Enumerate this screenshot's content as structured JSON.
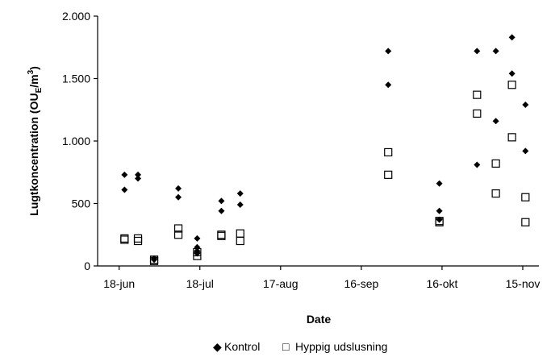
{
  "chart_data": {
    "type": "scatter",
    "title": "",
    "xlabel": "Date",
    "ylabel_main": "Lugtkoncentration (OU",
    "ylabel_sub": "E",
    "ylabel_end": "/m",
    "ylabel_sup": "3",
    "ylabel_close": ")",
    "xlim": [
      "2006-06-10",
      "2006-11-21"
    ],
    "ylim": [
      0,
      2000
    ],
    "grid": false,
    "legend_position": "bottom",
    "x_ticks": [
      {
        "date": "2006-06-18",
        "label": "18-jun"
      },
      {
        "date": "2006-07-18",
        "label": "18-jul"
      },
      {
        "date": "2006-08-17",
        "label": "17-aug"
      },
      {
        "date": "2006-09-16",
        "label": "16-sep"
      },
      {
        "date": "2006-10-16",
        "label": "16-okt"
      },
      {
        "date": "2006-11-15",
        "label": "15-nov"
      }
    ],
    "y_ticks": [
      {
        "value": 0,
        "label": "0"
      },
      {
        "value": 500,
        "label": "500"
      },
      {
        "value": 1000,
        "label": "1.000"
      },
      {
        "value": 1500,
        "label": "1.500"
      },
      {
        "value": 2000,
        "label": "2.000"
      }
    ],
    "series": [
      {
        "name": "Kontrol",
        "marker": "diamond-filled",
        "color": "#000000",
        "points": [
          [
            "2006-06-20",
            730
          ],
          [
            "2006-06-20",
            610
          ],
          [
            "2006-06-25",
            730
          ],
          [
            "2006-06-25",
            700
          ],
          [
            "2006-07-01",
            50
          ],
          [
            "2006-07-01",
            60
          ],
          [
            "2006-07-10",
            620
          ],
          [
            "2006-07-10",
            550
          ],
          [
            "2006-07-17",
            220
          ],
          [
            "2006-07-17",
            150
          ],
          [
            "2006-07-17",
            120
          ],
          [
            "2006-07-17",
            100
          ],
          [
            "2006-07-26",
            520
          ],
          [
            "2006-07-26",
            440
          ],
          [
            "2006-08-02",
            580
          ],
          [
            "2006-08-02",
            490
          ],
          [
            "2006-09-26",
            1720
          ],
          [
            "2006-09-26",
            1450
          ],
          [
            "2006-10-15",
            660
          ],
          [
            "2006-10-15",
            440
          ],
          [
            "2006-10-15",
            370
          ],
          [
            "2006-10-29",
            1720
          ],
          [
            "2006-10-29",
            810
          ],
          [
            "2006-11-05",
            1720
          ],
          [
            "2006-11-05",
            1160
          ],
          [
            "2006-11-11",
            1830
          ],
          [
            "2006-11-11",
            1540
          ],
          [
            "2006-11-16",
            1290
          ],
          [
            "2006-11-16",
            920
          ]
        ]
      },
      {
        "name": "Hyppig udslusning",
        "marker": "square-open",
        "color": "#000000",
        "points": [
          [
            "2006-06-20",
            220
          ],
          [
            "2006-06-20",
            210
          ],
          [
            "2006-06-25",
            220
          ],
          [
            "2006-06-25",
            200
          ],
          [
            "2006-07-01",
            50
          ],
          [
            "2006-07-01",
            40
          ],
          [
            "2006-07-10",
            300
          ],
          [
            "2006-07-10",
            250
          ],
          [
            "2006-07-17",
            110
          ],
          [
            "2006-07-17",
            80
          ],
          [
            "2006-07-26",
            250
          ],
          [
            "2006-07-26",
            240
          ],
          [
            "2006-08-02",
            260
          ],
          [
            "2006-08-02",
            200
          ],
          [
            "2006-09-26",
            910
          ],
          [
            "2006-09-26",
            730
          ],
          [
            "2006-10-15",
            360
          ],
          [
            "2006-10-15",
            350
          ],
          [
            "2006-10-29",
            1370
          ],
          [
            "2006-10-29",
            1220
          ],
          [
            "2006-11-05",
            820
          ],
          [
            "2006-11-05",
            580
          ],
          [
            "2006-11-11",
            1450
          ],
          [
            "2006-11-11",
            1030
          ],
          [
            "2006-11-16",
            550
          ],
          [
            "2006-11-16",
            350
          ]
        ]
      }
    ],
    "legend": [
      {
        "symbol": "◆",
        "label": "Kontrol"
      },
      {
        "symbol": "□",
        "label": "Hyppig udslusning"
      }
    ]
  }
}
